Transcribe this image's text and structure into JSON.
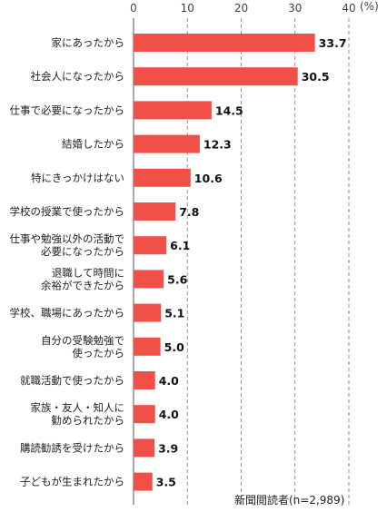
{
  "chart_data": {
    "type": "bar",
    "orientation": "horizontal",
    "categories": [
      [
        "家にあったから"
      ],
      [
        "社会人になったから"
      ],
      [
        "仕事で必要になったから"
      ],
      [
        "結婚したから"
      ],
      [
        "特にきっかけはない"
      ],
      [
        "学校の授業で使ったから"
      ],
      [
        "仕事や勉強以外の活動で",
        "必要になったから"
      ],
      [
        "退職して時間に",
        "余裕ができたから"
      ],
      [
        "学校、職場にあったから"
      ],
      [
        "自分の受験勉強で",
        "使ったから"
      ],
      [
        "就職活動で使ったから"
      ],
      [
        "家族・友人・知人に",
        "勧められたから"
      ],
      [
        "購読勧誘を受けたから"
      ],
      [
        "子どもが生まれたから"
      ]
    ],
    "values": [
      33.7,
      30.5,
      14.5,
      12.3,
      10.6,
      7.8,
      6.1,
      5.6,
      5.1,
      5.0,
      4.0,
      4.0,
      3.9,
      3.5
    ],
    "value_labels": [
      "33.7",
      "30.5",
      "14.5",
      "12.3",
      "10.6",
      "7.8",
      "6.1",
      "5.6",
      "5.1",
      "5.0",
      "4.0",
      "4.0",
      "3.9",
      "3.5"
    ],
    "xlim": [
      0,
      40
    ],
    "xticks": [
      "0",
      "10",
      "20",
      "30",
      "40"
    ],
    "unit_label": "(%)",
    "note": "新聞閲読者(n=2,989)",
    "bar_color": "#f05048",
    "grid": "dashed vertical"
  }
}
